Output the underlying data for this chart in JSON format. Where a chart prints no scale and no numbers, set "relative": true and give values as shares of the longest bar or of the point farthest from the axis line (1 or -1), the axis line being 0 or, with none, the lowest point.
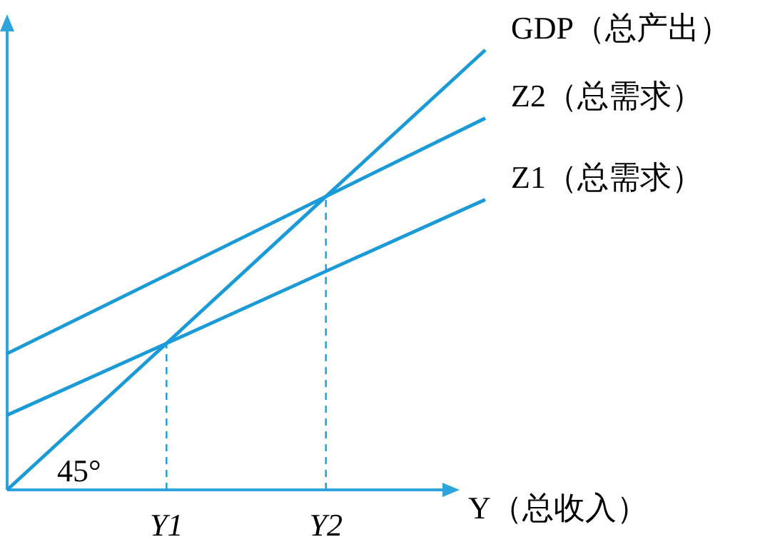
{
  "chart_data": {
    "type": "line",
    "relative": true,
    "xlabel": "Y（总收入）",
    "color": "#1a9ad6",
    "legend": false,
    "tick_labels": "x",
    "categories": [
      null,
      "Y1",
      "Y2",
      null
    ],
    "series": [
      {
        "name": "GDP（总产出）",
        "color": "#1a9ad6",
        "values": [
          0,
          0.333,
          0.667,
          1
        ]
      },
      {
        "name": "Z2（总需求）",
        "color": "#1a9ad6",
        "values": [
          0.31,
          0.488,
          0.667,
          0.845
        ]
      },
      {
        "name": "Z1（总需求）",
        "color": "#1a9ad6",
        "values": [
          0.17,
          0.333,
          0.497,
          0.66
        ]
      }
    ],
    "ref_lines": [
      {
        "axis": "x",
        "value": "Y1",
        "line_style": "dashed"
      },
      {
        "axis": "x",
        "value": "Y2",
        "line_style": "dashed"
      }
    ],
    "annotations": [
      "45°"
    ]
  }
}
